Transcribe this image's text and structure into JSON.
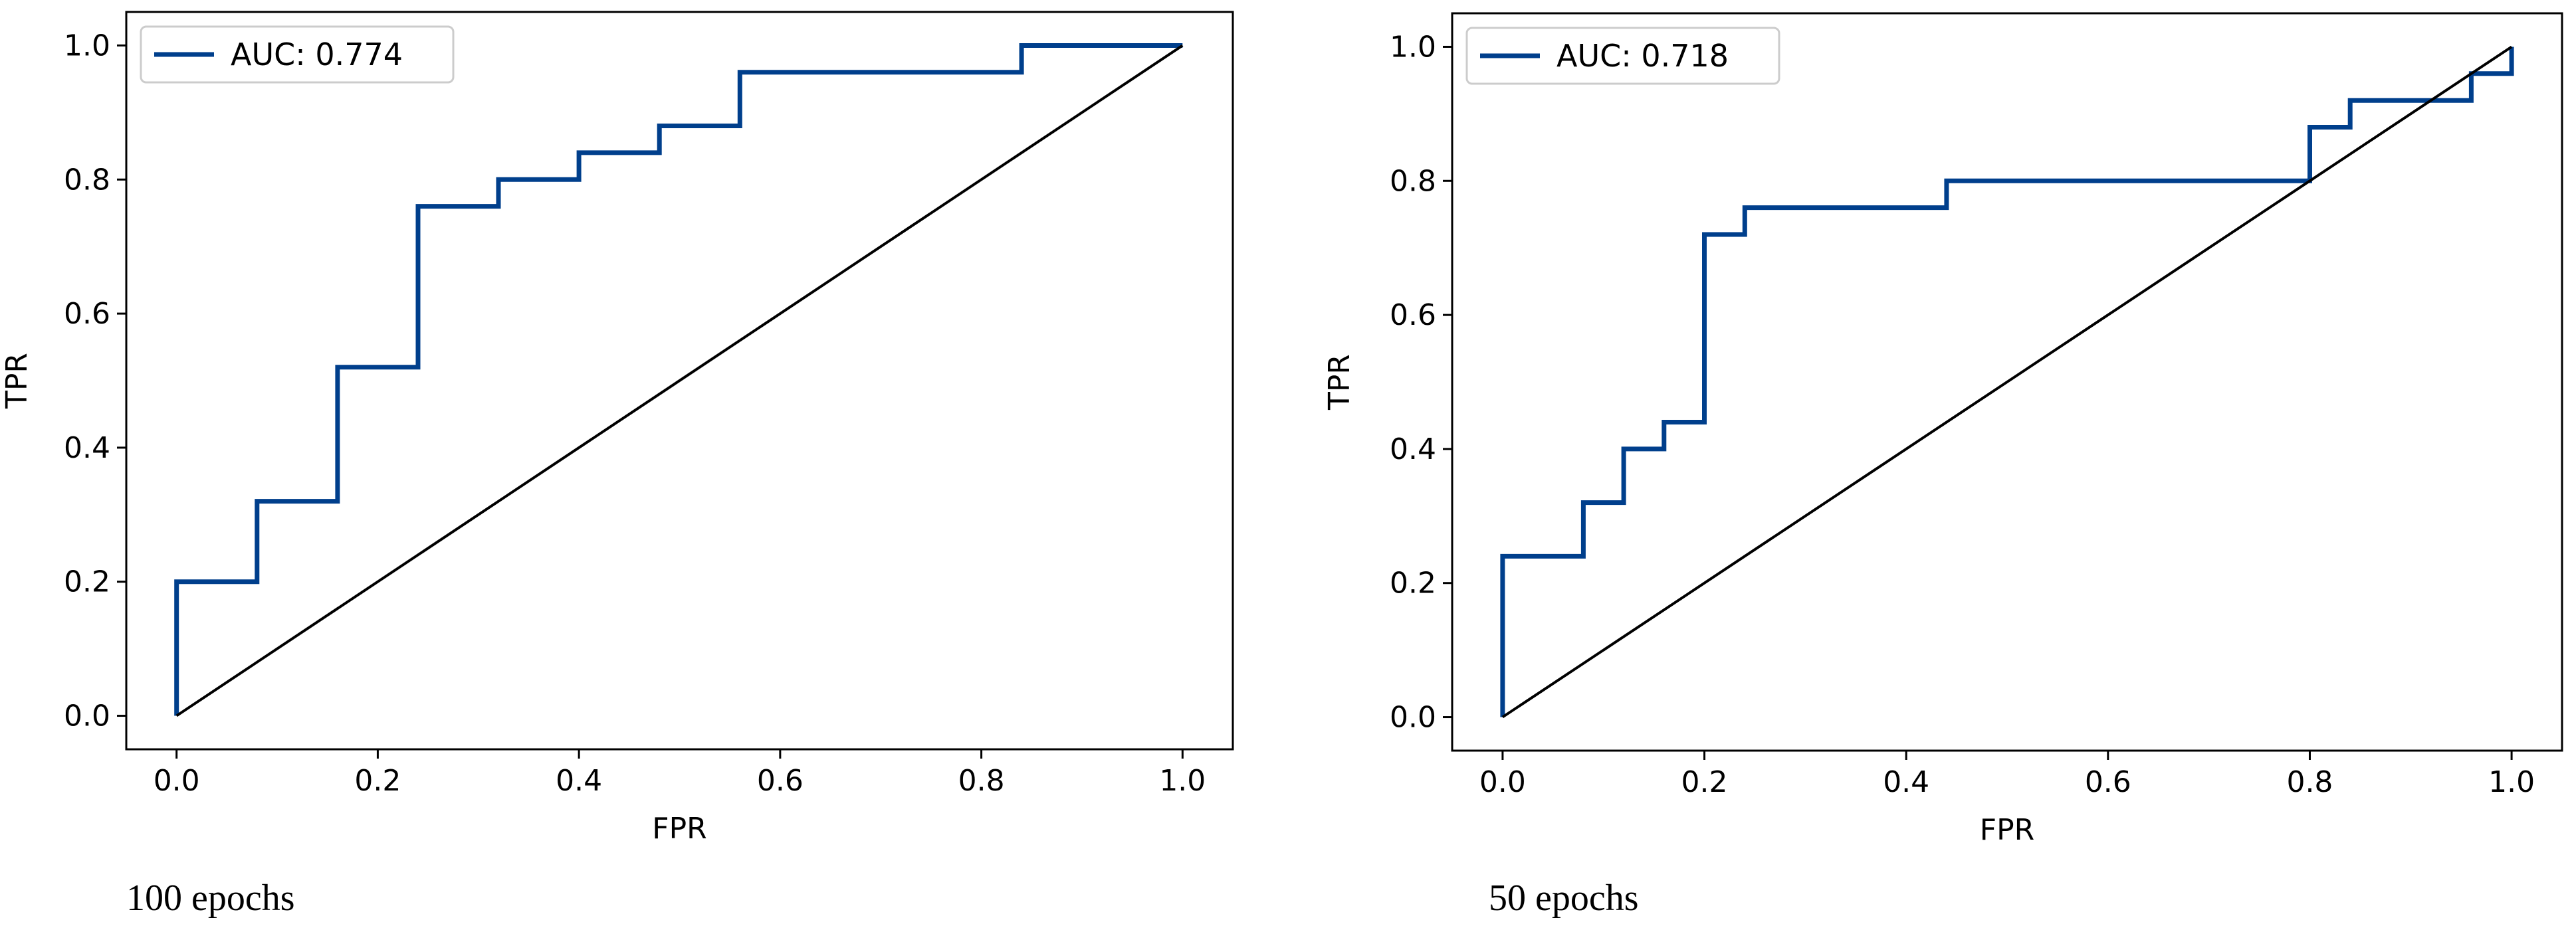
{
  "chart_data": [
    {
      "type": "line",
      "title": "",
      "caption": "100 epochs",
      "xlabel": "FPR",
      "ylabel": "TPR",
      "xlim": [
        -0.05,
        1.05
      ],
      "ylim": [
        -0.05,
        1.05
      ],
      "xticks": [
        0.0,
        0.2,
        0.4,
        0.6,
        0.8,
        1.0
      ],
      "yticks": [
        0.0,
        0.2,
        0.4,
        0.6,
        0.8,
        1.0
      ],
      "xtick_labels": [
        "0.0",
        "0.2",
        "0.4",
        "0.6",
        "0.8",
        "1.0"
      ],
      "ytick_labels": [
        "0.0",
        "0.2",
        "0.4",
        "0.6",
        "0.8",
        "1.0"
      ],
      "legend_position": "top-left",
      "series": [
        {
          "name": "AUC: 0.774",
          "color": "#003f8c",
          "step": true,
          "x": [
            0.0,
            0.0,
            0.08,
            0.08,
            0.16,
            0.16,
            0.24,
            0.24,
            0.32,
            0.32,
            0.4,
            0.4,
            0.48,
            0.48,
            0.56,
            0.56,
            0.84,
            0.84,
            1.0
          ],
          "y": [
            0.0,
            0.2,
            0.2,
            0.32,
            0.32,
            0.52,
            0.52,
            0.76,
            0.76,
            0.8,
            0.8,
            0.84,
            0.84,
            0.88,
            0.88,
            0.96,
            0.96,
            1.0,
            1.0
          ]
        },
        {
          "name": "chance",
          "color": "#000000",
          "legend": false,
          "x": [
            0.0,
            1.0
          ],
          "y": [
            0.0,
            1.0
          ]
        }
      ]
    },
    {
      "type": "line",
      "title": "",
      "caption": "50 epochs",
      "xlabel": "FPR",
      "ylabel": "TPR",
      "xlim": [
        -0.05,
        1.05
      ],
      "ylim": [
        -0.05,
        1.05
      ],
      "xticks": [
        0.0,
        0.2,
        0.4,
        0.6,
        0.8,
        1.0
      ],
      "yticks": [
        0.0,
        0.2,
        0.4,
        0.6,
        0.8,
        1.0
      ],
      "xtick_labels": [
        "0.0",
        "0.2",
        "0.4",
        "0.6",
        "0.8",
        "1.0"
      ],
      "ytick_labels": [
        "0.0",
        "0.2",
        "0.4",
        "0.6",
        "0.8",
        "1.0"
      ],
      "legend_position": "top-left",
      "series": [
        {
          "name": "AUC: 0.718",
          "color": "#003f8c",
          "step": true,
          "x": [
            0.0,
            0.0,
            0.08,
            0.08,
            0.12,
            0.12,
            0.16,
            0.16,
            0.2,
            0.2,
            0.24,
            0.24,
            0.44,
            0.44,
            0.8,
            0.8,
            0.84,
            0.84,
            0.96,
            0.96,
            1.0,
            1.0
          ],
          "y": [
            0.0,
            0.24,
            0.24,
            0.32,
            0.32,
            0.4,
            0.4,
            0.44,
            0.44,
            0.72,
            0.72,
            0.76,
            0.76,
            0.8,
            0.8,
            0.88,
            0.88,
            0.92,
            0.92,
            0.96,
            0.96,
            1.0
          ]
        },
        {
          "name": "chance",
          "color": "#000000",
          "legend": false,
          "x": [
            0.0,
            1.0
          ],
          "y": [
            0.0,
            1.0
          ]
        }
      ]
    }
  ]
}
